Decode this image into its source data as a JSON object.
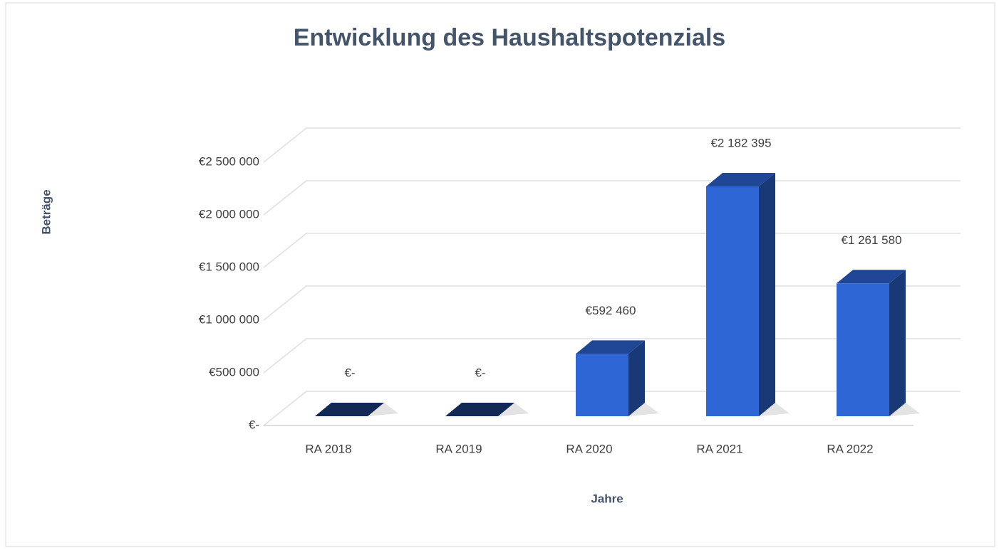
{
  "chart_data": {
    "type": "bar3d",
    "title": "Entwicklung des Haushaltspotenzials",
    "x_label": "Jahre",
    "y_label": "Beträge",
    "categories": [
      "RA 2018",
      "RA 2019",
      "RA 2020",
      "RA 2021",
      "RA 2022"
    ],
    "values": [
      0,
      0,
      592460,
      2182395,
      1261580
    ],
    "value_labels": [
      "€-",
      "€-",
      "€592 460",
      "€2 182 395",
      "€1 261 580"
    ],
    "color": "#2e66d6",
    "ylim": [
      0,
      2500000
    ],
    "yticks": [
      {
        "value": 0,
        "label": "€-"
      },
      {
        "value": 500000,
        "label": "€500 000"
      },
      {
        "value": 1000000,
        "label": "€1 000 000"
      },
      {
        "value": 1500000,
        "label": "€1 500 000"
      },
      {
        "value": 2000000,
        "label": "€2 000 000"
      },
      {
        "value": 2500000,
        "label": "€2 500 000"
      }
    ],
    "grid": true
  }
}
